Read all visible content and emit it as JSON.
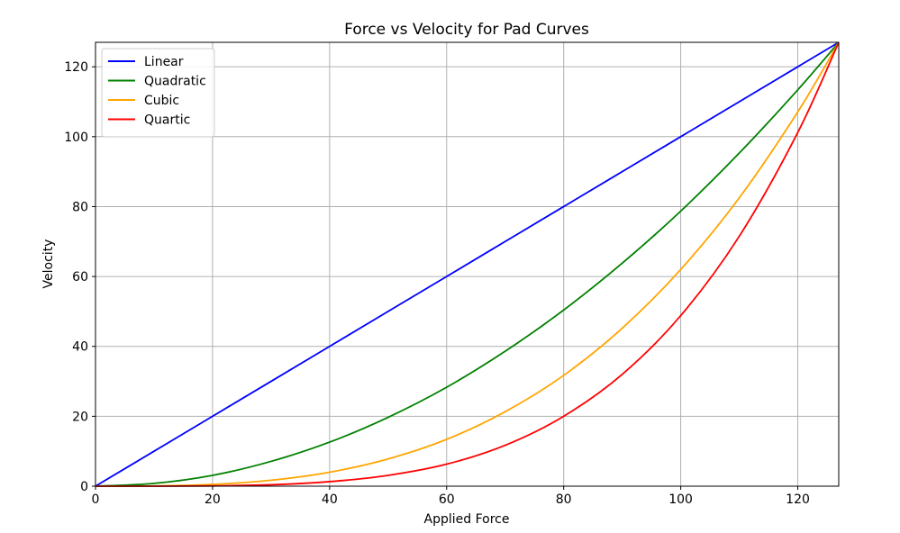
{
  "chart_data": {
    "type": "line",
    "title": "Force vs Velocity for Pad Curves",
    "xlabel": "Applied Force",
    "ylabel": "Velocity",
    "xlim": [
      0,
      127
    ],
    "ylim": [
      0,
      127
    ],
    "xticks": [
      0,
      20,
      40,
      60,
      80,
      100,
      120
    ],
    "yticks": [
      0,
      20,
      40,
      60,
      80,
      100,
      120
    ],
    "grid": true,
    "legend_position": "top-left",
    "x": [
      0,
      10,
      20,
      30,
      40,
      50,
      60,
      70,
      80,
      90,
      100,
      110,
      120,
      127
    ],
    "series": [
      {
        "name": "Linear",
        "color": "#0000ff",
        "values": [
          0,
          10,
          20,
          30,
          40,
          50,
          60,
          70,
          80,
          90,
          100,
          110,
          120,
          127
        ]
      },
      {
        "name": "Quadratic",
        "color": "#008000",
        "values": [
          0,
          0.8,
          3.1,
          7.1,
          12.6,
          19.7,
          28.3,
          38.6,
          50.4,
          63.8,
          78.7,
          95.3,
          113.4,
          127
        ]
      },
      {
        "name": "Cubic",
        "color": "#ffa500",
        "values": [
          0,
          0.06,
          0.5,
          1.7,
          4.0,
          7.8,
          13.4,
          21.3,
          31.7,
          45.2,
          62.0,
          82.5,
          107.1,
          127
        ]
      },
      {
        "name": "Quartic",
        "color": "#ff0000",
        "values": [
          0,
          0.0,
          0.08,
          0.4,
          1.3,
          3.1,
          6.3,
          11.7,
          20.0,
          32.0,
          48.8,
          71.5,
          101.2,
          127
        ]
      }
    ]
  }
}
